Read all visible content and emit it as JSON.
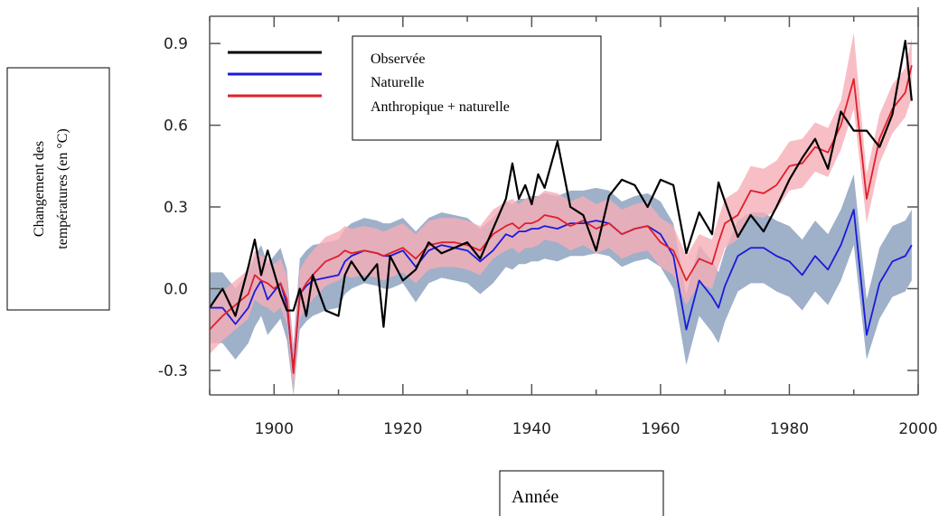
{
  "chart_data": {
    "type": "line",
    "xlabel": "Année",
    "ylabel_lines": [
      "Changement des",
      "températures (en °C)"
    ],
    "xlim": [
      1890,
      2000
    ],
    "ylim": [
      -0.39,
      1.0
    ],
    "xticks": [
      1900,
      1920,
      1940,
      1960,
      1980,
      2000
    ],
    "yticks": [
      -0.3,
      0.0,
      0.3,
      0.6,
      0.9
    ],
    "ytick_labels": [
      "-0.3",
      "0.0",
      "0.3",
      "0.6",
      "0.9"
    ],
    "legend_position": "top-left",
    "grid": false,
    "x": [
      1890,
      1892,
      1894,
      1896,
      1897,
      1898,
      1899,
      1900,
      1901,
      1902,
      1903,
      1904,
      1905,
      1906,
      1908,
      1910,
      1911,
      1912,
      1914,
      1916,
      1917,
      1918,
      1920,
      1922,
      1924,
      1926,
      1928,
      1930,
      1932,
      1934,
      1936,
      1937,
      1938,
      1939,
      1940,
      1941,
      1942,
      1944,
      1946,
      1948,
      1950,
      1952,
      1954,
      1956,
      1958,
      1960,
      1962,
      1964,
      1966,
      1968,
      1969,
      1970,
      1972,
      1974,
      1976,
      1978,
      1980,
      1982,
      1984,
      1986,
      1988,
      1990,
      1992,
      1994,
      1996,
      1998,
      1999
    ],
    "series": [
      {
        "name": "Observée",
        "color": "#000000",
        "values": [
          -0.07,
          0.0,
          -0.1,
          0.08,
          0.18,
          0.05,
          0.14,
          0.06,
          -0.02,
          -0.08,
          -0.08,
          0.0,
          -0.1,
          0.05,
          -0.08,
          -0.1,
          0.05,
          0.1,
          0.03,
          0.09,
          -0.14,
          0.12,
          0.03,
          0.07,
          0.17,
          0.13,
          0.15,
          0.17,
          0.11,
          0.22,
          0.33,
          0.46,
          0.33,
          0.38,
          0.31,
          0.42,
          0.37,
          0.54,
          0.3,
          0.27,
          0.14,
          0.34,
          0.4,
          0.38,
          0.3,
          0.4,
          0.38,
          0.13,
          0.28,
          0.2,
          0.39,
          0.32,
          0.19,
          0.27,
          0.21,
          0.3,
          0.4,
          0.48,
          0.55,
          0.44,
          0.65,
          0.58,
          0.58,
          0.52,
          0.64,
          0.91,
          0.69
        ]
      },
      {
        "name": "Naturelle",
        "color": "#1a1ad8",
        "values": [
          -0.07,
          -0.07,
          -0.13,
          -0.07,
          -0.01,
          0.03,
          -0.04,
          -0.01,
          0.02,
          -0.06,
          -0.3,
          -0.02,
          0.01,
          0.03,
          0.04,
          0.05,
          0.1,
          0.12,
          0.14,
          0.13,
          0.12,
          0.12,
          0.14,
          0.08,
          0.14,
          0.16,
          0.15,
          0.14,
          0.1,
          0.14,
          0.2,
          0.19,
          0.21,
          0.21,
          0.22,
          0.22,
          0.23,
          0.22,
          0.24,
          0.24,
          0.25,
          0.24,
          0.2,
          0.22,
          0.23,
          0.2,
          0.12,
          -0.15,
          0.03,
          -0.03,
          -0.07,
          0.01,
          0.12,
          0.15,
          0.15,
          0.12,
          0.1,
          0.05,
          0.12,
          0.07,
          0.16,
          0.29,
          -0.17,
          0.02,
          0.1,
          0.12,
          0.16
        ]
      },
      {
        "name": "Anthropique + naturelle",
        "color": "#e0202a",
        "values": [
          -0.15,
          -0.1,
          -0.06,
          -0.02,
          0.05,
          0.03,
          0.02,
          0.0,
          0.02,
          -0.04,
          -0.31,
          -0.02,
          0.02,
          0.05,
          0.1,
          0.12,
          0.14,
          0.13,
          0.14,
          0.13,
          0.12,
          0.13,
          0.15,
          0.11,
          0.16,
          0.17,
          0.17,
          0.16,
          0.14,
          0.2,
          0.23,
          0.24,
          0.22,
          0.24,
          0.24,
          0.25,
          0.27,
          0.26,
          0.23,
          0.25,
          0.22,
          0.24,
          0.2,
          0.22,
          0.23,
          0.17,
          0.14,
          0.03,
          0.11,
          0.09,
          0.17,
          0.24,
          0.27,
          0.36,
          0.35,
          0.38,
          0.45,
          0.46,
          0.52,
          0.5,
          0.6,
          0.77,
          0.33,
          0.55,
          0.66,
          0.72,
          0.82
        ]
      }
    ],
    "bands": [
      {
        "name": "Naturelle",
        "color": "#8ea2c0",
        "lower": [
          -0.2,
          -0.2,
          -0.26,
          -0.2,
          -0.14,
          -0.1,
          -0.17,
          -0.14,
          -0.11,
          -0.19,
          -0.39,
          -0.15,
          -0.12,
          -0.1,
          -0.08,
          -0.07,
          -0.02,
          0.0,
          0.02,
          0.01,
          0.0,
          0.0,
          0.02,
          -0.05,
          0.02,
          0.04,
          0.03,
          0.02,
          -0.02,
          0.02,
          0.08,
          0.07,
          0.09,
          0.09,
          0.1,
          0.1,
          0.11,
          0.1,
          0.12,
          0.12,
          0.13,
          0.12,
          0.08,
          0.1,
          0.11,
          0.08,
          0.0,
          -0.28,
          -0.1,
          -0.16,
          -0.2,
          -0.12,
          -0.01,
          0.02,
          0.02,
          -0.01,
          -0.03,
          -0.08,
          -0.01,
          -0.06,
          0.03,
          0.16,
          -0.26,
          -0.11,
          -0.03,
          -0.01,
          0.03
        ],
        "upper": [
          0.06,
          0.06,
          0.0,
          0.06,
          0.12,
          0.16,
          0.09,
          0.12,
          0.15,
          0.07,
          -0.21,
          0.11,
          0.14,
          0.16,
          0.17,
          0.18,
          0.22,
          0.24,
          0.26,
          0.25,
          0.24,
          0.24,
          0.26,
          0.21,
          0.26,
          0.28,
          0.27,
          0.26,
          0.22,
          0.26,
          0.32,
          0.31,
          0.33,
          0.33,
          0.34,
          0.34,
          0.35,
          0.34,
          0.36,
          0.36,
          0.37,
          0.36,
          0.32,
          0.34,
          0.35,
          0.32,
          0.24,
          -0.02,
          0.16,
          0.1,
          0.06,
          0.14,
          0.25,
          0.28,
          0.28,
          0.25,
          0.23,
          0.18,
          0.25,
          0.2,
          0.29,
          0.42,
          -0.04,
          0.15,
          0.23,
          0.25,
          0.29
        ]
      },
      {
        "name": "Anthropique + naturelle",
        "color": "#f6aeb8",
        "lower": [
          -0.24,
          -0.19,
          -0.15,
          -0.11,
          -0.04,
          -0.06,
          -0.07,
          -0.09,
          -0.07,
          -0.13,
          -0.38,
          -0.11,
          -0.07,
          -0.04,
          0.01,
          0.03,
          0.05,
          0.04,
          0.05,
          0.04,
          0.03,
          0.04,
          0.06,
          0.02,
          0.07,
          0.08,
          0.08,
          0.07,
          0.05,
          0.11,
          0.14,
          0.15,
          0.13,
          0.15,
          0.15,
          0.16,
          0.18,
          0.17,
          0.14,
          0.16,
          0.13,
          0.15,
          0.11,
          0.13,
          0.14,
          0.08,
          0.05,
          -0.06,
          0.02,
          0.0,
          0.08,
          0.15,
          0.18,
          0.27,
          0.26,
          0.29,
          0.36,
          0.37,
          0.43,
          0.41,
          0.51,
          0.66,
          0.24,
          0.46,
          0.57,
          0.63,
          0.7
        ],
        "upper": [
          -0.06,
          -0.01,
          0.03,
          0.07,
          0.14,
          0.12,
          0.11,
          0.09,
          0.11,
          0.05,
          -0.22,
          0.07,
          0.11,
          0.14,
          0.19,
          0.21,
          0.23,
          0.22,
          0.23,
          0.22,
          0.21,
          0.22,
          0.24,
          0.2,
          0.25,
          0.26,
          0.26,
          0.25,
          0.23,
          0.29,
          0.32,
          0.33,
          0.31,
          0.33,
          0.33,
          0.34,
          0.36,
          0.35,
          0.32,
          0.34,
          0.31,
          0.33,
          0.29,
          0.31,
          0.32,
          0.26,
          0.23,
          0.12,
          0.2,
          0.18,
          0.26,
          0.33,
          0.36,
          0.45,
          0.44,
          0.47,
          0.54,
          0.55,
          0.61,
          0.59,
          0.69,
          0.94,
          0.42,
          0.64,
          0.75,
          0.81,
          0.92
        ]
      }
    ],
    "legend": [
      {
        "label": "Observée",
        "color": "#000000"
      },
      {
        "label": "Naturelle",
        "color": "#1a1ad8"
      },
      {
        "label": "Anthropique + naturelle",
        "color": "#e0202a"
      }
    ],
    "axis_color": "#555555"
  }
}
